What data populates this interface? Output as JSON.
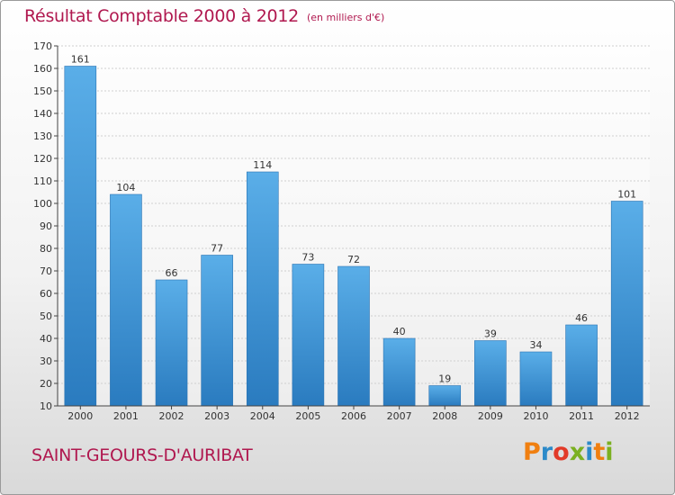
{
  "chart_data": {
    "type": "bar",
    "title": "Résultat Comptable 2000 à 2012",
    "subtitle": "(en milliers d'€)",
    "categories": [
      "2000",
      "2001",
      "2002",
      "2003",
      "2004",
      "2005",
      "2006",
      "2007",
      "2008",
      "2009",
      "2010",
      "2011",
      "2012"
    ],
    "values": [
      161,
      104,
      66,
      77,
      114,
      73,
      72,
      40,
      19,
      39,
      34,
      46,
      101
    ],
    "ylim": [
      10,
      170
    ],
    "yticks": [
      10,
      20,
      30,
      40,
      50,
      60,
      70,
      80,
      90,
      100,
      110,
      120,
      130,
      140,
      150,
      160,
      170
    ],
    "xlabel": "",
    "ylabel": "",
    "grid": true,
    "bar_color": "#3d8fd4"
  },
  "footer": {
    "commune": "SAINT-GEOURS-D'AURIBAT",
    "logo_text": "Proxiti"
  },
  "colors": {
    "title": "#b0184f",
    "logo_letters": [
      "#f07f10",
      "#2c8ac9",
      "#e23a28",
      "#7bb020",
      "#2c8ac9",
      "#f07f10",
      "#7bb020"
    ]
  }
}
